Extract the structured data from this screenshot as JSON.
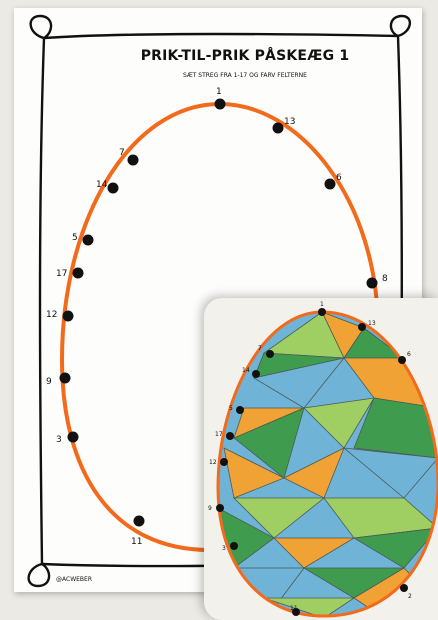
{
  "worksheet": {
    "title": "PRIK-TIL-PRIK PÅSKEÆG 1",
    "subtitle": "SÆT STREG FRA 1-17 OG FARV FELTERNE",
    "credit": "@ACWEBER",
    "dot_labels": [
      "1",
      "13",
      "7",
      "6",
      "14",
      "5",
      "17",
      "8",
      "12",
      "9",
      "3",
      "11"
    ]
  },
  "photo": {
    "dot_labels": [
      "1",
      "13",
      "7",
      "6",
      "14",
      "5",
      "17",
      "12",
      "9",
      "3",
      "11",
      "2"
    ]
  },
  "colors": {
    "egg_outline": "#f26a1b",
    "dots": "#111111",
    "green": "#3f9b4e",
    "light_green": "#9fce63",
    "blue": "#6fb3d6",
    "orange": "#f0a235"
  }
}
